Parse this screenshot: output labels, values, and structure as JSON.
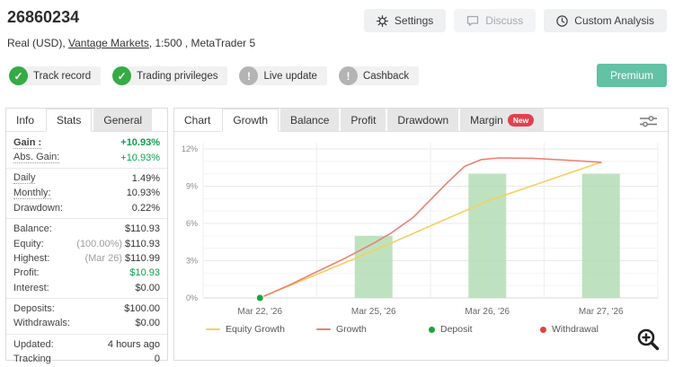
{
  "header": {
    "account_id": "26860234",
    "account_info": {
      "prefix": "Real (USD), ",
      "broker": "Vantage Markets",
      "suffix": ", 1:500 , MetaTrader 5"
    },
    "buttons": [
      {
        "label": "Settings",
        "icon": "gear-icon"
      },
      {
        "label": "Discuss",
        "icon": "chat-icon"
      },
      {
        "label": "Custom Analysis",
        "icon": "clock-icon"
      }
    ],
    "premium_label": "Premium"
  },
  "badges": [
    {
      "label": "Track record",
      "status": "verified",
      "icon": "check-circle-icon"
    },
    {
      "label": "Trading privileges",
      "status": "verified",
      "icon": "check-circle-icon"
    },
    {
      "label": "Live update",
      "status": "info",
      "icon": "exclamation-circle-icon"
    },
    {
      "label": "Cashback",
      "status": "info",
      "icon": "exclamation-circle-icon"
    }
  ],
  "stats_panel": {
    "tabs": [
      {
        "label": "Info"
      },
      {
        "label": "Stats"
      },
      {
        "label": "General"
      }
    ],
    "active_tab": "Stats",
    "rows": [
      {
        "label": "Gain :",
        "value": "+10.93%"
      },
      {
        "label": "Abs. Gain:",
        "value": "+10.93%"
      },
      {
        "label": "Daily",
        "value": "1.49%"
      },
      {
        "label": "Monthly:",
        "value": "10.93%"
      },
      {
        "label": "Drawdown:",
        "value": "0.22%"
      },
      {
        "label": "Balance:",
        "value": "$110.93"
      },
      {
        "label": "Equity:",
        "prefix": "(100.00%)",
        "value": "$110.93"
      },
      {
        "label": "Highest:",
        "prefix": "(Mar 26)",
        "value": "$110.99"
      },
      {
        "label": "Profit:",
        "value": "$10.93"
      },
      {
        "label": "Interest:",
        "value": "$0.00"
      },
      {
        "label": "Deposits:",
        "value": "$100.00"
      },
      {
        "label": "Withdrawals:",
        "value": "$0.00"
      },
      {
        "label": "Updated:",
        "value": "4 hours ago"
      },
      {
        "label": "Tracking",
        "value": "0"
      }
    ]
  },
  "chart_panel": {
    "tabs": [
      {
        "label": "Chart"
      },
      {
        "label": "Growth"
      },
      {
        "label": "Balance"
      },
      {
        "label": "Profit"
      },
      {
        "label": "Drawdown"
      },
      {
        "label": "Margin",
        "badge": "New"
      }
    ],
    "active_tab": "Growth"
  },
  "chart_data": {
    "type": "combo",
    "title": "Growth",
    "categories": [
      "Mar 22, '26",
      "Mar 25, '26",
      "Mar 26, '26",
      "Mar 27, '26"
    ],
    "ylim": [
      0,
      12
    ],
    "y_ticks": [
      0,
      3,
      6,
      9,
      12
    ],
    "y_tick_suffix": "%",
    "minor_step": 1,
    "grid": true,
    "bars": {
      "name": "Deposit bars",
      "values": [
        null,
        5,
        10,
        10
      ],
      "color": "#aedbaf"
    },
    "series": [
      {
        "name": "Equity Growth",
        "color": "#f6cf5f",
        "points": [
          [
            0,
            0
          ],
          [
            1,
            3.8
          ],
          [
            2,
            7.8
          ],
          [
            3,
            10.93
          ]
        ]
      },
      {
        "name": "Growth",
        "color": "#ee7f73",
        "points": [
          [
            0,
            0
          ],
          [
            0.25,
            1.0
          ],
          [
            0.5,
            2.1
          ],
          [
            0.75,
            3.2
          ],
          [
            1,
            4.4
          ],
          [
            1.15,
            5.2
          ],
          [
            1.35,
            6.5
          ],
          [
            1.5,
            7.9
          ],
          [
            1.65,
            9.3
          ],
          [
            1.8,
            10.6
          ],
          [
            1.95,
            11.15
          ],
          [
            2.1,
            11.28
          ],
          [
            2.4,
            11.25
          ],
          [
            2.7,
            11.1
          ],
          [
            3,
            10.93
          ]
        ]
      }
    ],
    "markers": [
      {
        "x": 0,
        "y": 0,
        "color": "#1ca53c",
        "name": "Deposit"
      }
    ],
    "legend": [
      {
        "label": "Equity Growth",
        "type": "line",
        "color": "#f6cf5f"
      },
      {
        "label": "Growth",
        "type": "line",
        "color": "#ee7f73"
      },
      {
        "label": "Deposit",
        "type": "dot",
        "color": "#1ca53c"
      },
      {
        "label": "Withdrawal",
        "type": "dot",
        "color": "#e4423c"
      }
    ]
  }
}
